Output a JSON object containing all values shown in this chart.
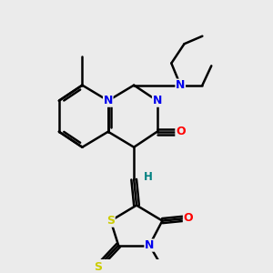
{
  "bg_color": "#ebebeb",
  "atom_colors": {
    "N": "#0000ee",
    "O": "#ff0000",
    "S": "#cccc00",
    "H": "#008080",
    "C": "#000000"
  },
  "bond_color": "#000000",
  "bond_width": 1.8,
  "xlim": [
    0,
    10
  ],
  "ylim": [
    0,
    10
  ],
  "figsize": [
    3.0,
    3.0
  ],
  "dpi": 100
}
